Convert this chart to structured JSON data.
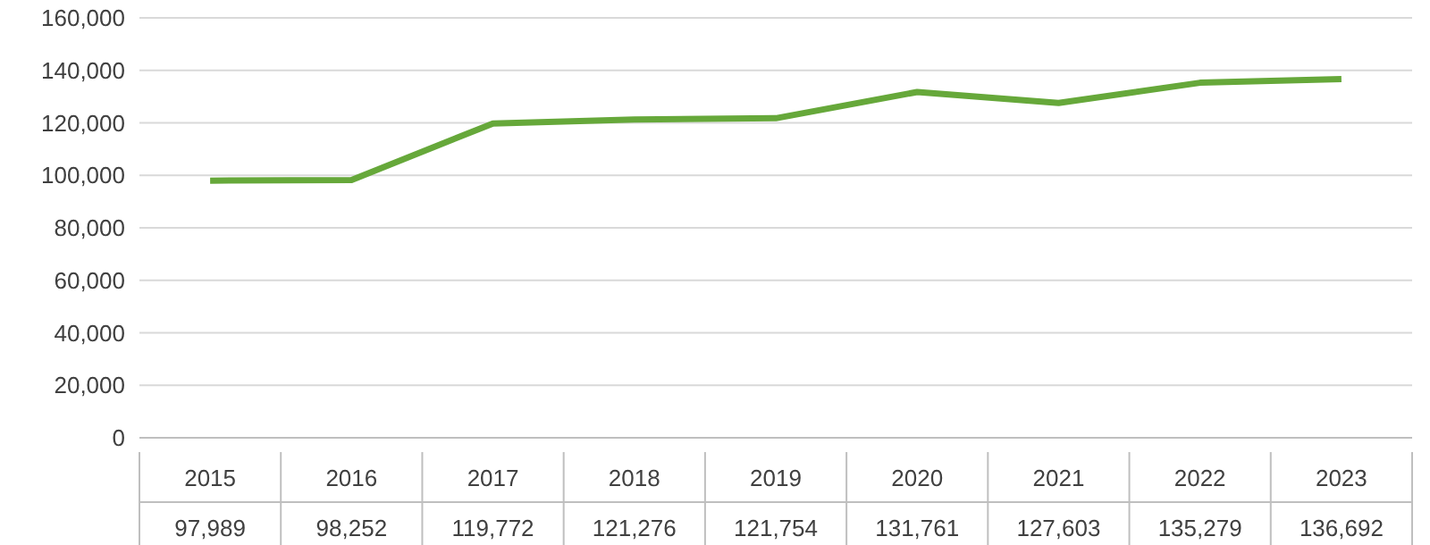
{
  "chart_data": {
    "type": "line",
    "categories": [
      "2015",
      "2016",
      "2017",
      "2018",
      "2019",
      "2020",
      "2021",
      "2022",
      "2023"
    ],
    "series": [
      {
        "color": "#66a83a",
        "values": [
          97989,
          98252,
          119772,
          121276,
          121754,
          131761,
          127603,
          135279,
          136692
        ],
        "value_labels": [
          "97,989",
          "98,252",
          "119,772",
          "121,276",
          "121,754",
          "131,761",
          "127,603",
          "135,279",
          "136,692"
        ]
      }
    ],
    "ylim": [
      0,
      160000
    ],
    "yticks": [
      {
        "value": 0,
        "label": "0"
      },
      {
        "value": 20000,
        "label": "20,000"
      },
      {
        "value": 40000,
        "label": "40,000"
      },
      {
        "value": 60000,
        "label": "60,000"
      },
      {
        "value": 80000,
        "label": "80,000"
      },
      {
        "value": 100000,
        "label": "100,000"
      },
      {
        "value": 120000,
        "label": "120,000"
      },
      {
        "value": 140000,
        "label": "140,000"
      },
      {
        "value": 160000,
        "label": "160,000"
      }
    ],
    "grid": "y",
    "marker": "none",
    "line_style": "solid",
    "legend": false
  }
}
